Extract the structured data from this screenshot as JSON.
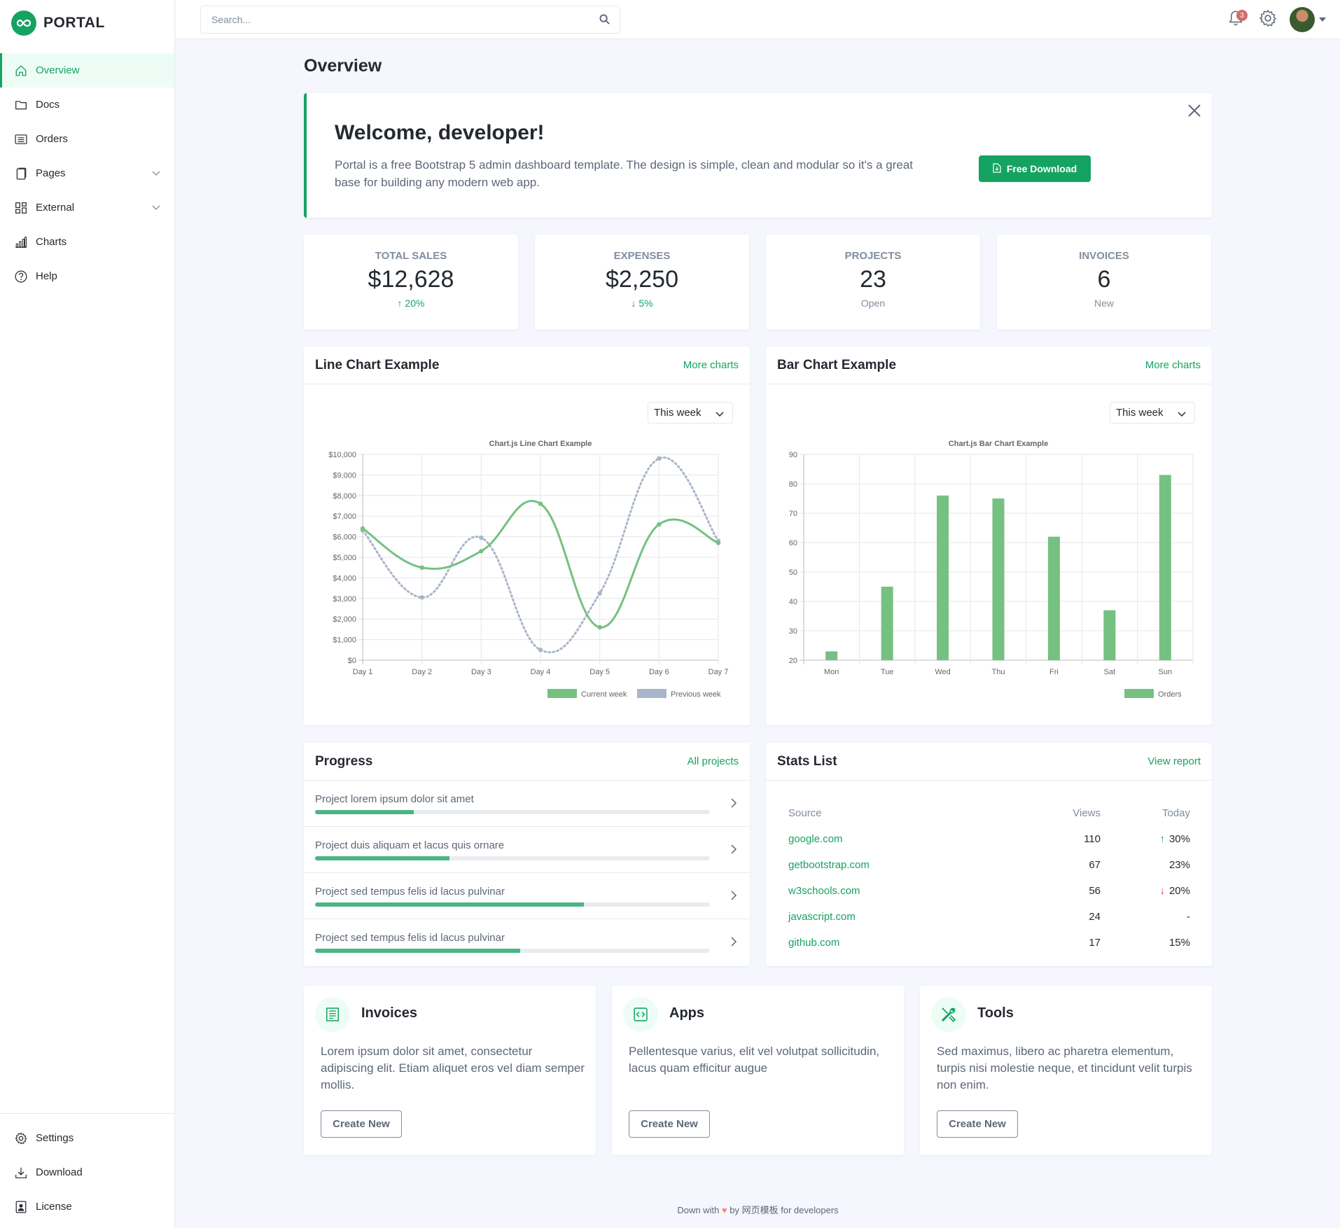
{
  "brand": {
    "name": "PORTAL",
    "logo_icon": "infinity-icon",
    "color": "#15a362"
  },
  "sidebar": {
    "items": [
      {
        "label": "Overview",
        "icon": "house-icon",
        "active": true
      },
      {
        "label": "Docs",
        "icon": "folder-icon"
      },
      {
        "label": "Orders",
        "icon": "list-icon"
      },
      {
        "label": "Pages",
        "icon": "files-icon",
        "has_caret": true
      },
      {
        "label": "External",
        "icon": "columns-icon",
        "has_caret": true
      },
      {
        "label": "Charts",
        "icon": "bar-chart-icon"
      },
      {
        "label": "Help",
        "icon": "question-circle-icon"
      }
    ],
    "bottom_items": [
      {
        "label": "Settings",
        "icon": "gear-icon"
      },
      {
        "label": "Download",
        "icon": "download-icon"
      },
      {
        "label": "License",
        "icon": "license-icon"
      }
    ]
  },
  "header": {
    "search_placeholder": "Search...",
    "notification_count": "3"
  },
  "page": {
    "title": "Overview"
  },
  "welcome": {
    "title": "Welcome, developer!",
    "text": "Portal is a free Bootstrap 5 admin dashboard template. The design is simple, clean and modular so it's a great base for building any modern web app.",
    "button": "Free Download"
  },
  "stats": [
    {
      "label": "Total Sales",
      "value": "$12,628",
      "sub": "20%",
      "arrow": "↑"
    },
    {
      "label": "Expenses",
      "value": "$2,250",
      "sub": "5%",
      "arrow": "↓"
    },
    {
      "label": "Projects",
      "value": "23",
      "sub": "Open",
      "arrow": ""
    },
    {
      "label": "Invoices",
      "value": "6",
      "sub": "New",
      "arrow": ""
    }
  ],
  "line_card": {
    "title": "Line Chart Example",
    "link": "More charts",
    "select": "This week"
  },
  "bar_card": {
    "title": "Bar Chart Example",
    "link": "More charts",
    "select": "This week"
  },
  "chart_data": [
    {
      "type": "line",
      "title": "Chart.js Line Chart Example",
      "categories": [
        "Day 1",
        "Day 2",
        "Day 3",
        "Day 4",
        "Day 5",
        "Day 6",
        "Day 7"
      ],
      "series": [
        {
          "name": "Current week",
          "values": [
            6400,
            4500,
            5300,
            7600,
            1600,
            6600,
            5700
          ],
          "color": "#75c181"
        },
        {
          "name": "Previous week",
          "values": [
            6300,
            3050,
            5950,
            500,
            3250,
            9800,
            5800
          ],
          "color": "#a9b5c9"
        }
      ],
      "ylim": [
        0,
        10000
      ],
      "yticks": [
        "$0",
        "$1,000",
        "$2,000",
        "$3,000",
        "$4,000",
        "$5,000",
        "$6,000",
        "$7,000",
        "$8,000",
        "$9,000",
        "$10,000"
      ]
    },
    {
      "type": "bar",
      "title": "Chart.js Bar Chart Example",
      "categories": [
        "Mon",
        "Tue",
        "Wed",
        "Thu",
        "Fri",
        "Sat",
        "Sun"
      ],
      "series": [
        {
          "name": "Orders",
          "values": [
            23,
            45,
            76,
            75,
            62,
            37,
            83
          ],
          "color": "#75c181"
        }
      ],
      "ylim": [
        20,
        90
      ],
      "yticks": [
        "20",
        "30",
        "40",
        "50",
        "60",
        "70",
        "80",
        "90"
      ]
    }
  ],
  "progress": {
    "title": "Progress",
    "link": "All projects",
    "items": [
      {
        "label": "Project lorem ipsum dolor sit amet",
        "percent": 25
      },
      {
        "label": "Project duis aliquam et lacus quis ornare",
        "percent": 34
      },
      {
        "label": "Project sed tempus felis id lacus pulvinar",
        "percent": 68
      },
      {
        "label": "Project sed tempus felis id lacus pulvinar",
        "percent": 52
      }
    ]
  },
  "stats_list": {
    "title": "Stats List",
    "link": "View report",
    "headers": [
      "Source",
      "Views",
      "Today"
    ],
    "rows": [
      {
        "source": "google.com",
        "views": "110",
        "today": "30%",
        "trend": "up"
      },
      {
        "source": "getbootstrap.com",
        "views": "67",
        "today": "23%",
        "trend": ""
      },
      {
        "source": "w3schools.com",
        "views": "56",
        "today": "20%",
        "trend": "down"
      },
      {
        "source": "javascript.com",
        "views": "24",
        "today": "-",
        "trend": ""
      },
      {
        "source": "github.com",
        "views": "17",
        "today": "15%",
        "trend": ""
      }
    ]
  },
  "features": [
    {
      "title": "Invoices",
      "icon": "receipt-icon",
      "text": "Lorem ipsum dolor sit amet, consectetur adipiscing elit. Etiam aliquet eros vel diam semper mollis.",
      "button": "Create New"
    },
    {
      "title": "Apps",
      "icon": "code-square-icon",
      "text": "Pellentesque varius, elit vel volutpat sollicitudin, lacus quam efficitur augue",
      "button": "Create New"
    },
    {
      "title": "Tools",
      "icon": "tools-icon",
      "text": "Sed maximus, libero ac pharetra elementum, turpis nisi molestie neque, et tincidunt velit turpis non enim.",
      "button": "Create New"
    }
  ],
  "footer": {
    "prefix": "Down with",
    "middle": "by",
    "brand": "网页模板",
    "suffix": "for developers"
  }
}
